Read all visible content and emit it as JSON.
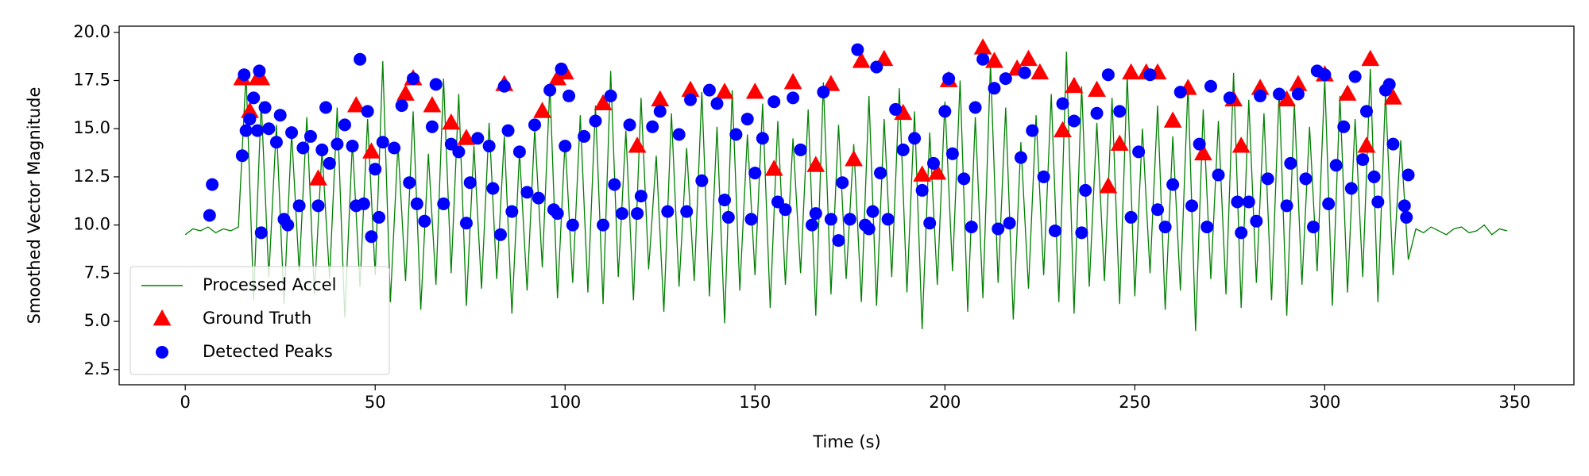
{
  "chart_data": {
    "type": "line",
    "x_label": "Time (s)",
    "y_label": "Smoothed Vector Magnitude",
    "xlim": [
      -17.4,
      365.6
    ],
    "ylim": [
      1.71,
      20.32
    ],
    "xticks": [
      0,
      50,
      100,
      150,
      200,
      250,
      300,
      350
    ],
    "yticks": [
      2.5,
      {
        "value": 5,
        "label": "5.0"
      },
      7.5,
      {
        "value": 10,
        "label": "10.0"
      },
      12.5,
      {
        "value": 15,
        "label": "15.0"
      },
      17.5,
      {
        "value": 20,
        "label": "20.0"
      }
    ],
    "legend": "lower left",
    "series": [
      {
        "name": "Processed Accel",
        "type": "line",
        "color": "#008000",
        "x": [
          0,
          2,
          4,
          6,
          8,
          10,
          12,
          14,
          16,
          18,
          20,
          22,
          24,
          26,
          28,
          30,
          32,
          34,
          36,
          38,
          40,
          42,
          44,
          46,
          48,
          50,
          52,
          54,
          56,
          58,
          60,
          62,
          64,
          66,
          68,
          70,
          72,
          74,
          76,
          78,
          80,
          82,
          84,
          86,
          88,
          90,
          92,
          94,
          96,
          98,
          100,
          102,
          104,
          106,
          108,
          110,
          112,
          114,
          116,
          118,
          120,
          122,
          124,
          126,
          128,
          130,
          132,
          134,
          136,
          138,
          140,
          142,
          144,
          146,
          148,
          150,
          152,
          154,
          156,
          158,
          160,
          162,
          164,
          166,
          168,
          170,
          172,
          174,
          176,
          178,
          180,
          182,
          184,
          186,
          188,
          190,
          192,
          194,
          196,
          198,
          200,
          202,
          204,
          206,
          208,
          210,
          212,
          214,
          216,
          218,
          220,
          222,
          224,
          226,
          228,
          230,
          232,
          234,
          236,
          238,
          240,
          242,
          244,
          246,
          248,
          250,
          252,
          254,
          256,
          258,
          260,
          262,
          264,
          266,
          268,
          270,
          272,
          274,
          276,
          278,
          280,
          282,
          284,
          286,
          288,
          290,
          292,
          294,
          296,
          298,
          300,
          302,
          304,
          306,
          308,
          310,
          312,
          314,
          316,
          318,
          320,
          322,
          324,
          326,
          328,
          330,
          332,
          334,
          336,
          338,
          340,
          342,
          344,
          346,
          348
        ],
        "values": [
          9.5,
          9.8,
          9.7,
          9.9,
          9.6,
          9.8,
          9.7,
          9.9,
          17.9,
          6.1,
          16.4,
          7.3,
          15.2,
          5.9,
          14.8,
          7.6,
          15.6,
          6.4,
          13.9,
          7.2,
          16.1,
          5.2,
          14.3,
          6.8,
          15.5,
          7.4,
          18.5,
          6.0,
          14.2,
          7.1,
          15.9,
          5.6,
          13.7,
          6.9,
          17.6,
          7.5,
          16.8,
          5.8,
          14.1,
          6.7,
          15.3,
          7.2,
          14.6,
          5.4,
          13.8,
          6.6,
          15.0,
          7.8,
          17.3,
          6.2,
          14.4,
          7.0,
          15.7,
          6.5,
          16.2,
          5.9,
          18.0,
          7.3,
          14.9,
          6.1,
          16.6,
          7.7,
          13.6,
          5.5,
          15.8,
          6.8,
          14.0,
          7.1,
          16.9,
          6.3,
          15.1,
          4.9,
          17.0,
          6.6,
          14.7,
          7.4,
          16.3,
          5.7,
          15.4,
          6.9,
          14.5,
          7.5,
          16.0,
          5.3,
          17.4,
          6.4,
          15.2,
          7.2,
          14.2,
          6.0,
          16.7,
          5.8,
          15.5,
          7.3,
          17.1,
          6.5,
          15.9,
          4.6,
          14.8,
          6.9,
          16.4,
          7.6,
          17.5,
          5.5,
          15.6,
          6.2,
          18.4,
          7.0,
          16.1,
          5.1,
          14.3,
          6.7,
          15.7,
          7.4,
          16.8,
          6.0,
          19.0,
          5.4,
          17.2,
          6.8,
          15.3,
          7.1,
          16.6,
          5.9,
          17.8,
          6.3,
          15.0,
          7.5,
          16.2,
          5.6,
          14.6,
          6.6,
          17.3,
          4.5,
          16.0,
          7.2,
          15.4,
          6.4,
          17.9,
          5.7,
          16.5,
          7.0,
          15.8,
          6.1,
          17.0,
          5.3,
          16.3,
          6.9,
          15.1,
          7.6,
          17.6,
          5.8,
          16.7,
          6.5,
          15.5,
          7.3,
          18.1,
          6.0,
          16.9,
          7.4,
          14.4,
          8.2,
          9.8,
          9.6,
          9.9,
          9.7,
          9.5,
          9.8,
          9.9,
          9.6,
          9.7,
          10.0,
          9.5,
          9.8,
          9.7
        ]
      },
      {
        "name": "Ground Truth",
        "type": "scatter",
        "marker": "triangle",
        "color": "#ff0000",
        "x": [
          15,
          17,
          19,
          20,
          35,
          45,
          49,
          58,
          60,
          65,
          70,
          74,
          84,
          94,
          98,
          100,
          110,
          119,
          125,
          133,
          142,
          150,
          155,
          160,
          166,
          170,
          176,
          178,
          184,
          189,
          194,
          198,
          201,
          210,
          213,
          219,
          222,
          225,
          231,
          234,
          240,
          243,
          246,
          249,
          253,
          256,
          260,
          264,
          268,
          276,
          278,
          283,
          290,
          293,
          300,
          306,
          311,
          312,
          318
        ],
        "values": [
          17.6,
          15.9,
          17.6,
          17.6,
          12.4,
          16.2,
          13.8,
          16.8,
          17.6,
          16.2,
          15.3,
          14.5,
          17.3,
          15.9,
          17.6,
          17.9,
          16.3,
          14.1,
          16.5,
          17.0,
          16.9,
          16.9,
          12.9,
          17.4,
          13.1,
          17.3,
          13.4,
          18.5,
          18.6,
          15.8,
          12.6,
          12.7,
          17.5,
          19.2,
          18.5,
          18.1,
          18.6,
          17.9,
          14.9,
          17.2,
          17.0,
          12.0,
          14.2,
          17.9,
          17.9,
          17.9,
          15.4,
          17.1,
          13.7,
          16.5,
          14.1,
          17.1,
          16.5,
          17.3,
          17.8,
          16.8,
          14.1,
          18.6,
          16.6
        ]
      },
      {
        "name": "Detected Peaks",
        "type": "scatter",
        "marker": "circle",
        "color": "#0000ff",
        "x": [
          6.4,
          7.1,
          15,
          15.5,
          16,
          17,
          18,
          19,
          19.5,
          20,
          21,
          22,
          24,
          25,
          26,
          27,
          28,
          30,
          31,
          33,
          35,
          36,
          37,
          38,
          40,
          42,
          44,
          45,
          46,
          47,
          48,
          49,
          50,
          51,
          52,
          55,
          57,
          59,
          60,
          61,
          63,
          65,
          66,
          68,
          70,
          72,
          74,
          75,
          77,
          80,
          81,
          83,
          84,
          85,
          86,
          88,
          90,
          92,
          93,
          96,
          97,
          98,
          99,
          100,
          101,
          102,
          105,
          108,
          110,
          112,
          113,
          115,
          117,
          119,
          120,
          123,
          125,
          127,
          130,
          132,
          133,
          136,
          138,
          140,
          142,
          143,
          145,
          148,
          149,
          150,
          152,
          155,
          156,
          158,
          160,
          162,
          165,
          166,
          168,
          170,
          172,
          173,
          175,
          177,
          179,
          180,
          181,
          182,
          183,
          185,
          187,
          189,
          192,
          194,
          196,
          197,
          200,
          201,
          202,
          205,
          207,
          208,
          210,
          213,
          214,
          216,
          217,
          220,
          221,
          223,
          226,
          229,
          231,
          234,
          236,
          237,
          240,
          243,
          246,
          249,
          251,
          254,
          256,
          258,
          260,
          262,
          265,
          267,
          269,
          270,
          272,
          275,
          277,
          278,
          280,
          282,
          283,
          285,
          288,
          290,
          291,
          293,
          295,
          297,
          298,
          300,
          301,
          303,
          305,
          307,
          308,
          310,
          311,
          313,
          314,
          316,
          317,
          318,
          321,
          321.5,
          322
        ],
        "values": [
          10.5,
          12.1,
          13.6,
          17.8,
          14.9,
          15.5,
          16.6,
          14.9,
          18.0,
          9.6,
          16.1,
          15.0,
          14.3,
          15.7,
          10.3,
          10.0,
          14.8,
          11.0,
          14.0,
          14.6,
          11.0,
          13.9,
          16.1,
          13.2,
          14.2,
          15.2,
          14.1,
          11.0,
          18.6,
          11.1,
          15.9,
          9.4,
          12.9,
          10.4,
          14.3,
          14.0,
          16.2,
          12.2,
          17.6,
          11.1,
          10.2,
          15.1,
          17.3,
          11.1,
          14.2,
          13.8,
          10.1,
          12.2,
          14.5,
          14.1,
          11.9,
          9.5,
          17.2,
          14.9,
          10.7,
          13.8,
          11.7,
          15.2,
          11.4,
          17.0,
          10.8,
          10.6,
          18.1,
          14.1,
          16.7,
          10.0,
          14.6,
          15.4,
          10.0,
          16.7,
          12.1,
          10.6,
          15.2,
          10.6,
          11.5,
          15.1,
          15.9,
          10.7,
          14.7,
          10.7,
          16.5,
          12.3,
          17.0,
          16.3,
          11.3,
          10.4,
          14.7,
          15.5,
          10.3,
          12.7,
          14.5,
          16.4,
          11.2,
          10.8,
          16.6,
          13.9,
          10.0,
          10.6,
          16.9,
          10.3,
          9.2,
          12.2,
          10.3,
          19.1,
          10.0,
          9.8,
          10.7,
          18.2,
          12.7,
          10.3,
          16.0,
          13.9,
          14.5,
          11.8,
          10.1,
          13.2,
          15.9,
          17.6,
          13.7,
          12.4,
          9.9,
          16.1,
          18.6,
          17.1,
          9.8,
          17.6,
          10.1,
          13.5,
          17.9,
          14.9,
          12.5,
          9.7,
          16.3,
          15.4,
          9.6,
          11.8,
          15.8,
          17.8,
          15.9,
          10.4,
          13.8,
          17.8,
          10.8,
          9.9,
          12.1,
          16.9,
          11.0,
          14.2,
          9.9,
          17.2,
          12.6,
          16.6,
          11.2,
          9.6,
          11.2,
          10.2,
          16.7,
          12.4,
          16.8,
          11.0,
          13.2,
          16.8,
          12.4,
          9.9,
          18.0,
          17.8,
          11.1,
          13.1,
          15.1,
          11.9,
          17.7,
          13.4,
          15.9,
          12.5,
          11.2,
          17.0,
          17.3,
          14.2,
          11.0,
          10.4,
          12.6
        ]
      }
    ]
  }
}
